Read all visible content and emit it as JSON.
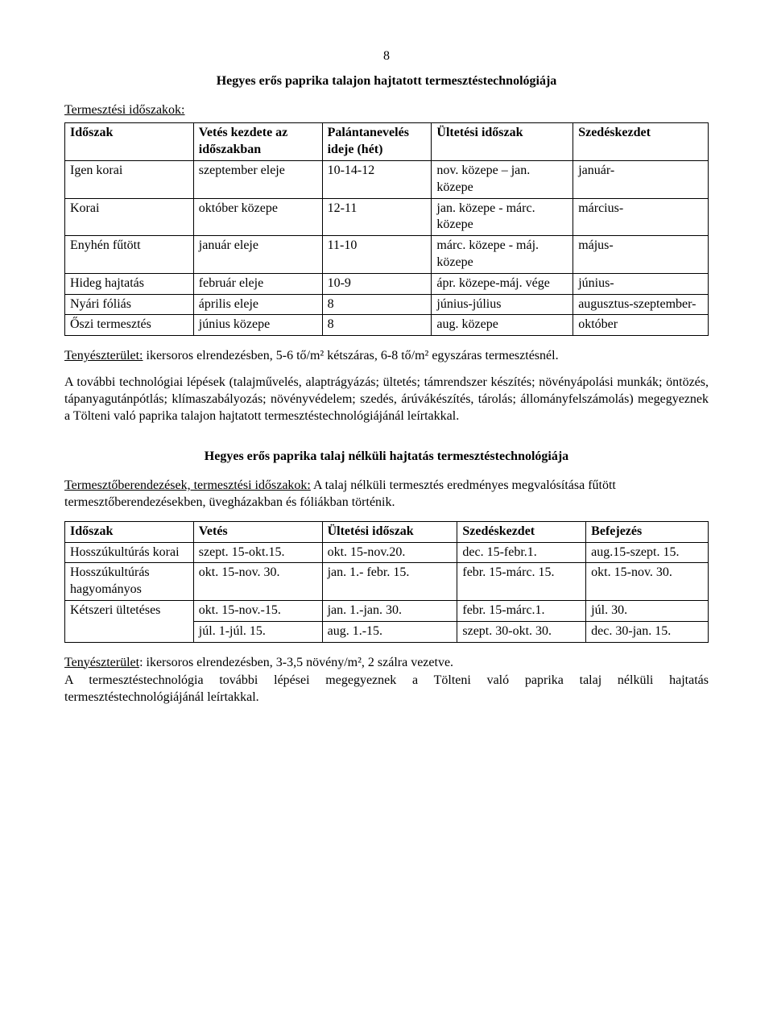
{
  "page_number": "8",
  "title1": "Hegyes erős paprika talajon hajtatott termesztéstechnológiája",
  "section1_label": "Termesztési időszakok:",
  "table1": {
    "headers": [
      "Időszak",
      "Vetés kezdete az időszakban",
      "Palántanevelés ideje (hét)",
      "Ültetési időszak",
      "Szedéskezdet"
    ],
    "rows": [
      [
        "Igen korai",
        "szeptember eleje",
        "10-14-12",
        "nov. közepe – jan. közepe",
        "január-"
      ],
      [
        "Korai",
        "október közepe",
        "12-11",
        "jan. közepe - márc. közepe",
        "március-"
      ],
      [
        "Enyhén fűtött",
        "január eleje",
        "11-10",
        "márc. közepe - máj. közepe",
        "május-"
      ],
      [
        "Hideg hajtatás",
        "február eleje",
        "10-9",
        "ápr. közepe-máj. vége",
        "június-"
      ],
      [
        "Nyári fóliás",
        "április eleje",
        "8",
        "június-július",
        "augusztus-szeptember-"
      ],
      [
        "Őszi termesztés",
        "június közepe",
        "8",
        "aug. közepe",
        "október"
      ]
    ],
    "col_widths": [
      "20%",
      "20%",
      "17%",
      "22%",
      "21%"
    ]
  },
  "para1_label": "Tenyészterület:",
  "para1_text": " ikersoros elrendezésben, 5-6 tő/m² kétszáras, 6-8 tő/m² egyszáras termesztésnél.",
  "para2": "A további technológiai lépések (talajművelés, alaptrágyázás; ültetés; támrendszer készítés; növényápolási munkák; öntözés, tápanyagutánpótlás; klímaszabályozás; növényvédelem; szedés, árúvákészítés, tárolás; állományfelszámolás) megegyeznek a Tölteni való paprika talajon hajtatott termesztéstechnológiájánál leírtakkal.",
  "title2": "Hegyes erős paprika talaj nélküli hajtatás termesztéstechnológiája",
  "section2_label": "Termesztőberendezések, termesztési időszakok:",
  "section2_text": " A talaj nélküli termesztés eredményes megvalósítása fűtött termesztőberendezésekben, üvegházakban és fóliákban történik.",
  "table2": {
    "headers": [
      "Időszak",
      "Vetés",
      "Ültetési időszak",
      "Szedéskezdet",
      "Befejezés"
    ],
    "rows": [
      [
        "Hosszúkultúrás korai",
        "szept. 15-okt.15.",
        "okt. 15-nov.20.",
        "dec. 15-febr.1.",
        "aug.15-szept. 15."
      ],
      [
        "Hosszúkultúrás hagyományos",
        "okt. 15-nov. 30.",
        "jan. 1.- febr. 15.",
        "febr. 15-márc. 15.",
        "okt. 15-nov. 30."
      ],
      [
        "Kétszeri ültetéses",
        "okt. 15-nov.-15.",
        "jan. 1.-jan. 30.",
        "febr. 15-márc.1.",
        "júl. 30."
      ],
      [
        "",
        "júl. 1-júl. 15.",
        "aug. 1.-15.",
        "szept. 30-okt. 30.",
        "dec. 30-jan. 15."
      ]
    ],
    "col_widths": [
      "20%",
      "20%",
      "21%",
      "20%",
      "19%"
    ],
    "rowspan_first": true
  },
  "para3_label": "Tenyészterület",
  "para3_text": ": ikersoros elrendezésben, 3-3,5 növény/m², 2 szálra vezetve.",
  "para4": "A termesztéstechnológia további lépései megegyeznek a Tölteni való paprika talaj nélküli hajtatás termesztéstechnológiájánál leírtakkal."
}
